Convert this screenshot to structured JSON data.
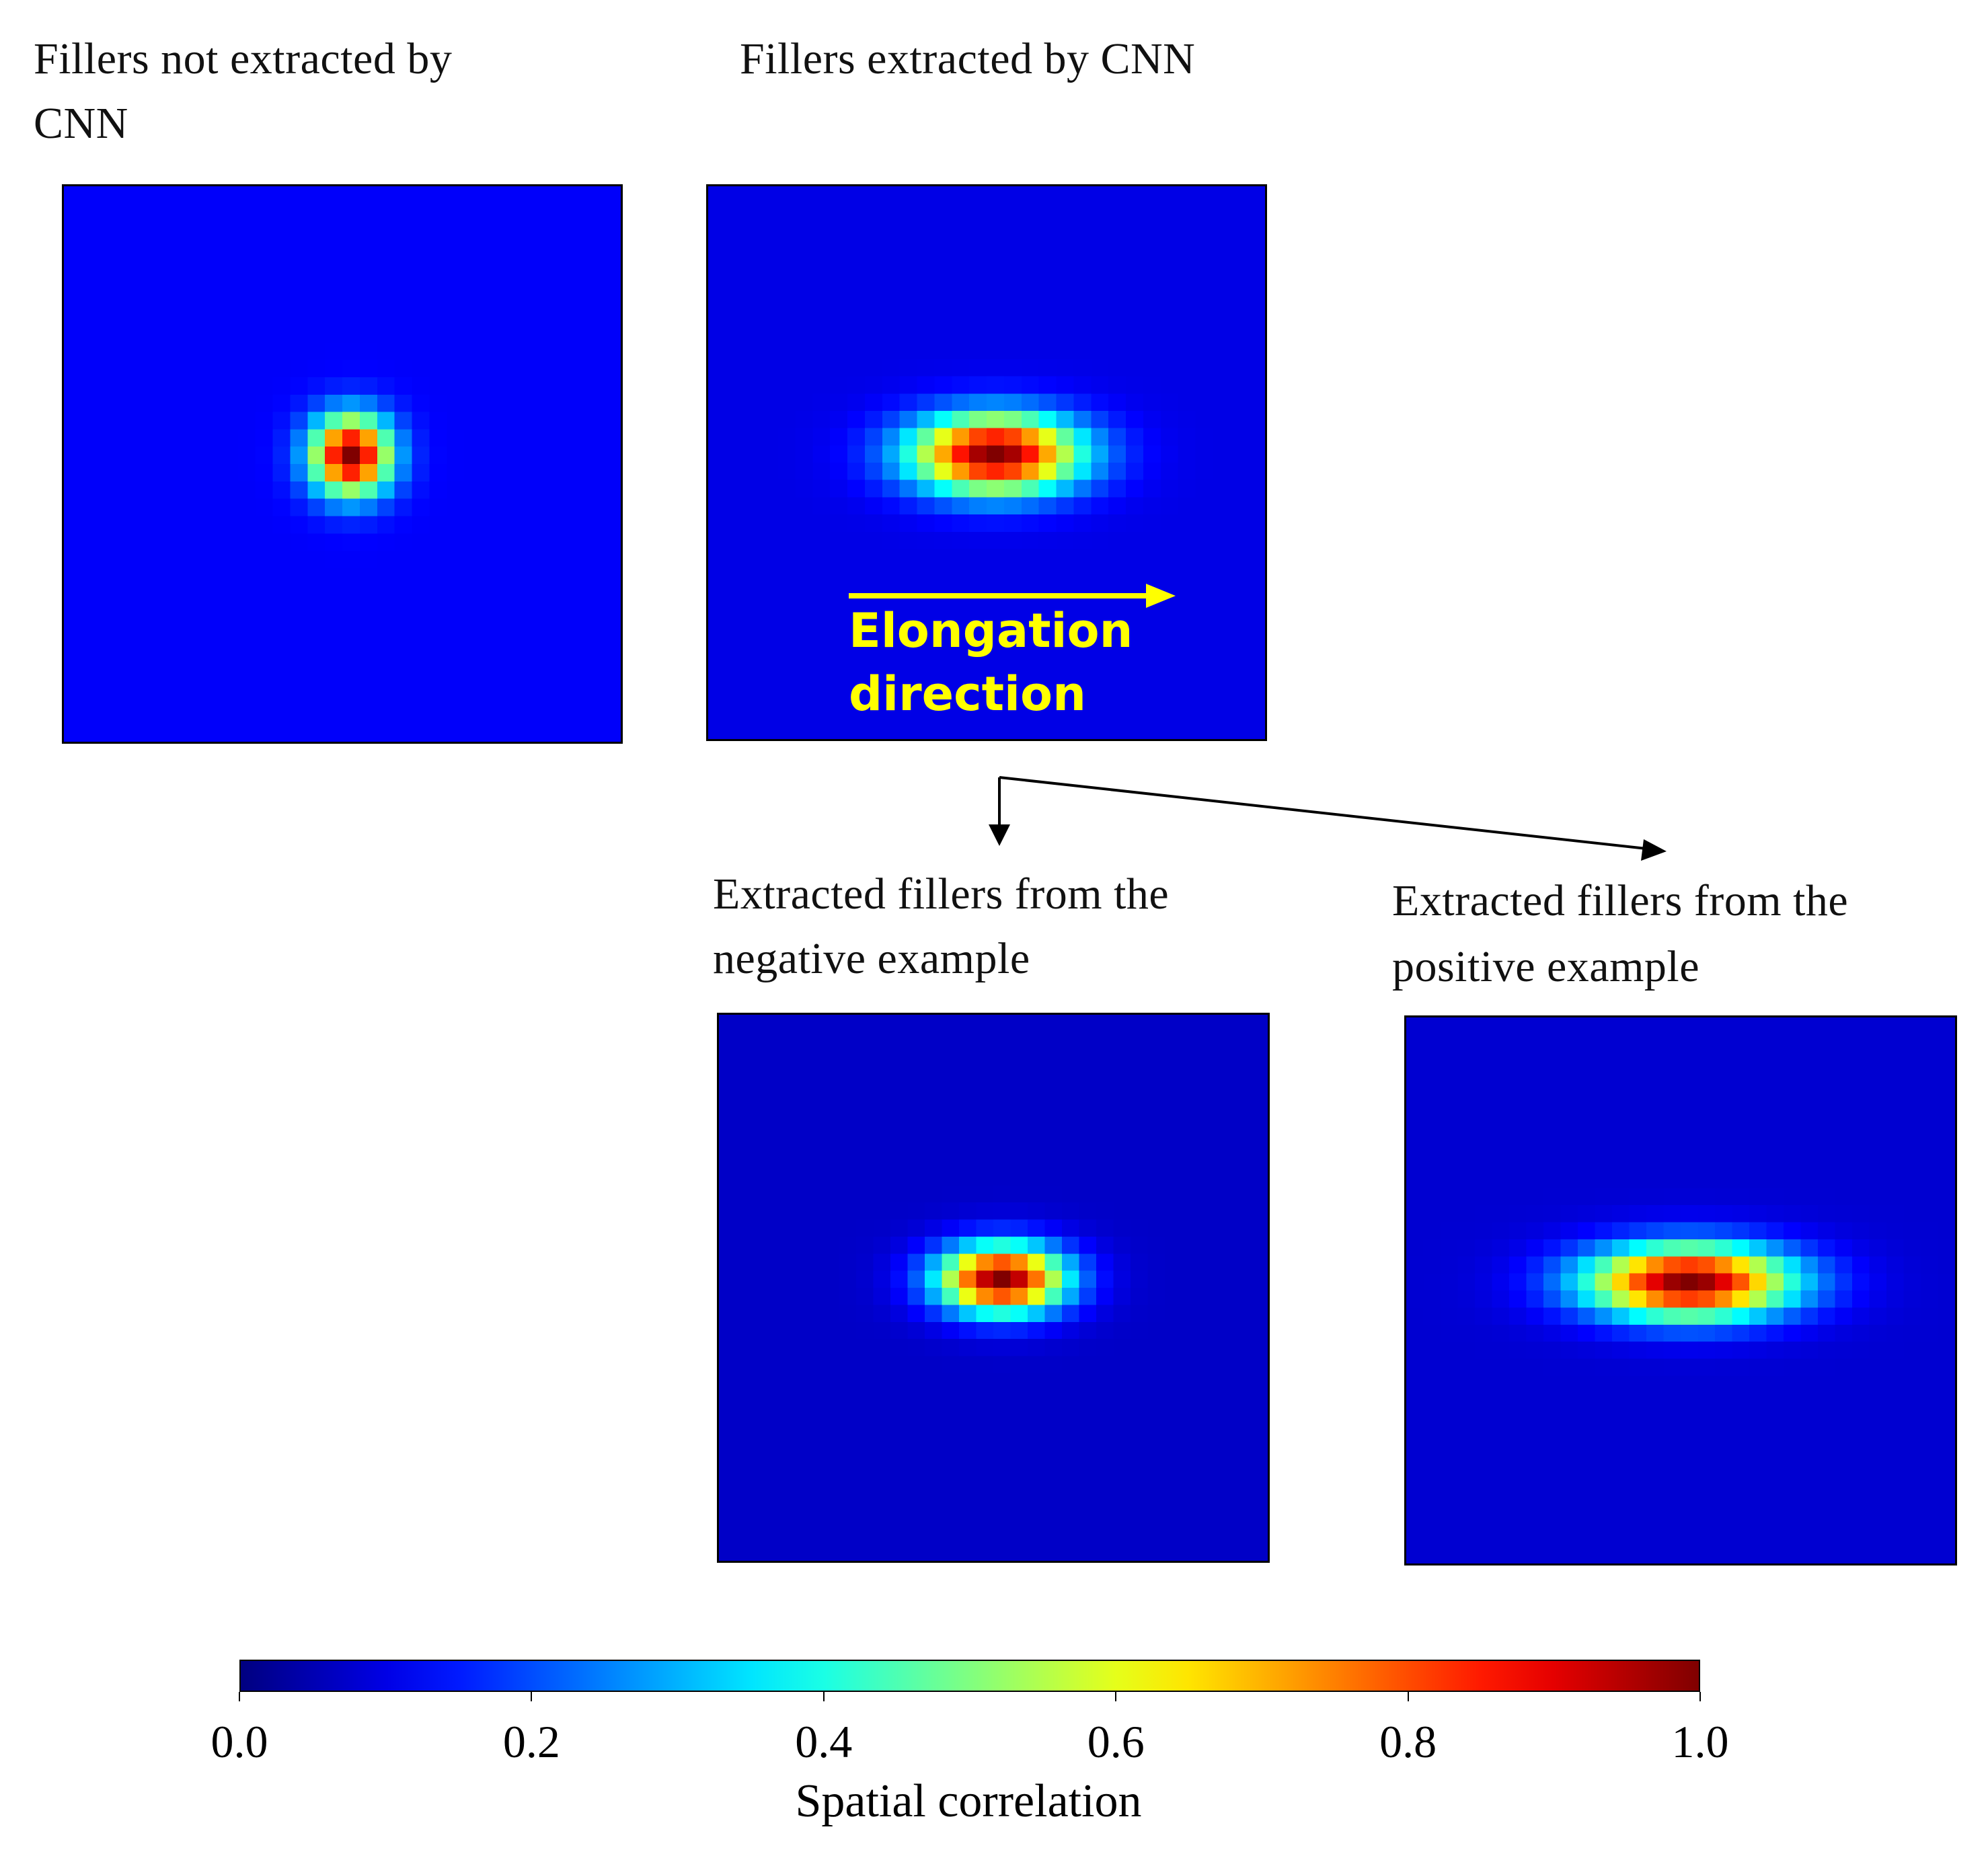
{
  "chart_data": {
    "type": "heatmap",
    "panels": [
      {
        "id": "not-extracted",
        "title": "Fillers not extracted by CNN",
        "peak": 1.0,
        "background": 0.12,
        "sigma_x": 1.6,
        "sigma_y": 1.6
      },
      {
        "id": "extracted",
        "title": "Fillers extracted by CNN",
        "peak": 1.0,
        "background": 0.1,
        "sigma_x": 3.4,
        "sigma_y": 1.6,
        "annotation": {
          "line1": "Elongation",
          "line2": "direction"
        }
      },
      {
        "id": "negative",
        "title": "Extracted fillers from the negative example",
        "peak": 1.0,
        "background": 0.07,
        "sigma_x": 2.6,
        "sigma_y": 1.4
      },
      {
        "id": "positive",
        "title": "Extracted fillers from the positive example",
        "peak": 1.0,
        "background": 0.08,
        "sigma_x": 4.2,
        "sigma_y": 1.5
      }
    ],
    "colorbar": {
      "colormap": "jet",
      "range": [
        0.0,
        1.0
      ],
      "ticks": [
        "0.0",
        "0.2",
        "0.4",
        "0.6",
        "0.8",
        "1.0"
      ],
      "label": "Spatial correlation"
    }
  },
  "labels": {
    "p1_line1": "Fillers not extracted by",
    "p1_line2": "CNN",
    "p2_line1": "Fillers extracted by CNN",
    "p3_line1": "Extracted fillers from the",
    "p3_line2": "negative example",
    "p4_line1": "Extracted fillers from the",
    "p4_line2": "positive example",
    "elong1": "Elongation",
    "elong2": "direction"
  },
  "colors": {
    "annotation": "#ffff00",
    "arrow": "#000000"
  }
}
